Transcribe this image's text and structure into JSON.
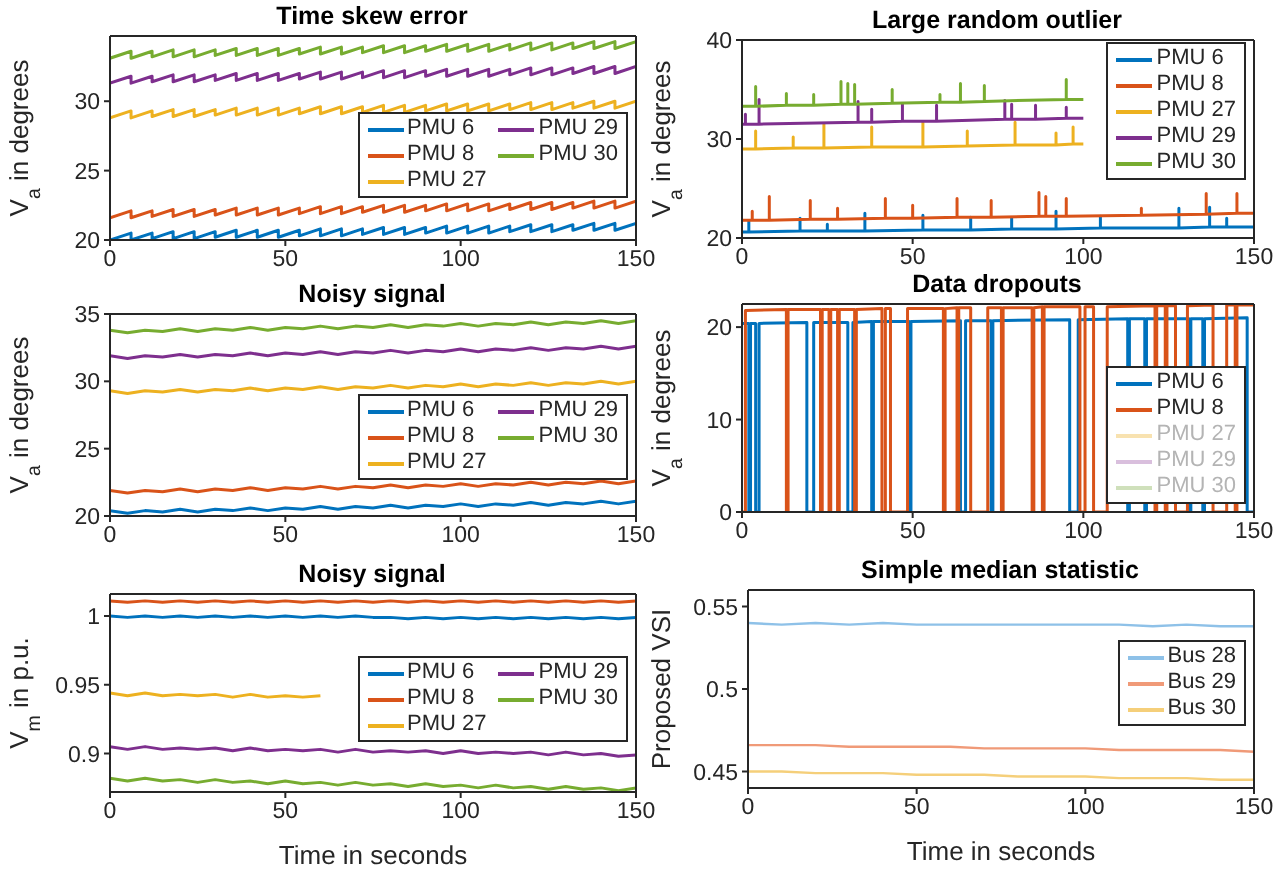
{
  "chart_data": [
    {
      "type": "line",
      "title": "Time skew error",
      "ylabel": "V$_{a}$ in degrees",
      "xlim": [
        0,
        150
      ],
      "xticks": [
        0,
        50,
        100,
        150
      ],
      "ylim": [
        20,
        34.7
      ],
      "yticks": [
        20,
        25,
        30
      ],
      "legend": "right",
      "x": [
        0,
        6,
        6,
        12,
        12,
        18,
        18,
        24,
        24,
        30,
        30,
        36,
        36,
        42,
        42,
        48,
        48,
        54,
        54,
        60,
        60,
        66,
        66,
        72,
        72,
        78,
        78,
        84,
        84,
        90,
        90,
        96,
        96,
        102,
        102,
        108,
        108,
        114,
        114,
        120,
        120,
        126,
        126,
        132,
        132,
        138,
        138,
        144,
        144,
        150
      ],
      "series": [
        {
          "name": "PMU 6",
          "color": "#0072bd",
          "values": [
            20,
            20.5,
            20,
            20.5,
            20.1,
            20.6,
            20.1,
            20.6,
            20.1,
            20.6,
            20.2,
            20.7,
            20.2,
            20.7,
            20.2,
            20.7,
            20.2,
            20.7,
            20.3,
            20.8,
            20.3,
            20.8,
            20.3,
            20.8,
            20.4,
            20.9,
            20.4,
            20.9,
            20.4,
            20.9,
            20.5,
            21,
            20.5,
            21,
            20.5,
            21,
            20.5,
            21,
            20.6,
            21.1,
            20.6,
            21.1,
            20.6,
            21.1,
            20.7,
            21.2,
            20.7,
            21.2,
            20.7,
            21.2
          ]
        },
        {
          "name": "PMU 8",
          "color": "#d95319",
          "values": [
            21.6,
            22.1,
            21.6,
            22.1,
            21.7,
            22.2,
            21.7,
            22.2,
            21.7,
            22.2,
            21.8,
            22.3,
            21.8,
            22.3,
            21.8,
            22.3,
            21.8,
            22.3,
            21.9,
            22.4,
            21.9,
            22.4,
            21.9,
            22.4,
            22,
            22.5,
            22,
            22.5,
            22,
            22.5,
            22.1,
            22.6,
            22.1,
            22.6,
            22.1,
            22.6,
            22.1,
            22.6,
            22.2,
            22.7,
            22.2,
            22.7,
            22.2,
            22.7,
            22.3,
            22.8,
            22.3,
            22.8,
            22.3,
            22.8
          ]
        },
        {
          "name": "PMU 27",
          "color": "#edb120",
          "values": [
            28.8,
            29.3,
            28.8,
            29.3,
            28.9,
            29.4,
            28.9,
            29.4,
            28.9,
            29.4,
            29,
            29.5,
            29,
            29.5,
            29,
            29.5,
            29,
            29.5,
            29.1,
            29.6,
            29.1,
            29.6,
            29.1,
            29.6,
            29.2,
            29.7,
            29.2,
            29.7,
            29.2,
            29.7,
            29.3,
            29.8,
            29.3,
            29.8,
            29.3,
            29.8,
            29.3,
            29.8,
            29.4,
            29.9,
            29.4,
            29.9,
            29.4,
            29.9,
            29.5,
            30,
            29.5,
            30,
            29.5,
            30
          ]
        },
        {
          "name": "PMU 29",
          "color": "#7e2f8e",
          "values": [
            31.3,
            31.8,
            31.3,
            31.8,
            31.4,
            31.9,
            31.4,
            31.9,
            31.4,
            31.9,
            31.5,
            32,
            31.5,
            32,
            31.5,
            32,
            31.5,
            32,
            31.6,
            32.1,
            31.6,
            32.1,
            31.6,
            32.1,
            31.7,
            32.2,
            31.7,
            32.2,
            31.7,
            32.2,
            31.8,
            32.3,
            31.8,
            32.3,
            31.8,
            32.3,
            31.8,
            32.3,
            31.9,
            32.4,
            31.9,
            32.4,
            31.9,
            32.4,
            32,
            32.5,
            32,
            32.5,
            32,
            32.5
          ]
        },
        {
          "name": "PMU 30",
          "color": "#77ac30",
          "values": [
            33.1,
            33.6,
            33.1,
            33.6,
            33.2,
            33.7,
            33.2,
            33.7,
            33.2,
            33.7,
            33.3,
            33.8,
            33.3,
            33.8,
            33.3,
            33.8,
            33.3,
            33.8,
            33.4,
            33.9,
            33.4,
            33.9,
            33.4,
            33.9,
            33.5,
            34,
            33.5,
            34,
            33.5,
            34,
            33.6,
            34.1,
            33.6,
            34.1,
            33.6,
            34.1,
            33.6,
            34.1,
            33.7,
            34.2,
            33.7,
            34.2,
            33.7,
            34.2,
            33.8,
            34.3,
            33.8,
            34.3,
            33.8,
            34.3
          ]
        }
      ]
    },
    {
      "type": "line",
      "title": "Large random outlier",
      "ylabel": "V$_{a}$ in degrees",
      "xlim": [
        0,
        150
      ],
      "xticks": [
        0,
        50,
        100,
        150
      ],
      "ylim": [
        20,
        40
      ],
      "yticks": [
        20,
        30,
        40
      ],
      "legend": "top right",
      "series": [
        {
          "name": "PMU 6",
          "color": "#0072bd",
          "x": [
            0,
            2,
            2,
            2,
            17,
            17,
            17,
            25,
            25,
            25,
            36,
            36,
            36,
            53,
            53,
            53,
            67,
            67,
            67,
            79,
            79,
            79,
            92,
            92,
            92,
            105,
            105,
            105,
            128,
            128,
            128,
            137,
            137,
            137,
            142,
            142,
            142,
            150
          ],
          "values": [
            20.6,
            20.6,
            21.7,
            20.6,
            20.7,
            22,
            20.7,
            20.7,
            21.4,
            20.7,
            20.7,
            22.5,
            20.7,
            20.8,
            22.3,
            20.8,
            20.8,
            22.1,
            20.8,
            20.9,
            22,
            20.9,
            20.9,
            22.7,
            20.9,
            21,
            22.2,
            21,
            21,
            23,
            21,
            21.1,
            23.1,
            21.1,
            21.1,
            22,
            21.1,
            21.1
          ]
        },
        {
          "name": "PMU 8",
          "color": "#d95319",
          "x": [
            0,
            3,
            3,
            3,
            8,
            8,
            8,
            20,
            20,
            20,
            28,
            28,
            28,
            42,
            42,
            42,
            50,
            50,
            50,
            63,
            63,
            63,
            73,
            73,
            73,
            87,
            87,
            87,
            89,
            89,
            89,
            95,
            95,
            95,
            117,
            117,
            117,
            136,
            136,
            136,
            145,
            145,
            145,
            150
          ],
          "values": [
            21.8,
            21.8,
            22.7,
            21.8,
            21.8,
            24.2,
            21.8,
            21.9,
            23.8,
            21.9,
            21.9,
            23,
            21.9,
            22,
            24,
            22,
            22,
            23.3,
            22,
            22.1,
            24,
            22.1,
            22.1,
            23.8,
            22.1,
            22.2,
            24.6,
            22.2,
            22.2,
            24.2,
            22.2,
            22.2,
            24,
            22.2,
            22.3,
            23,
            22.3,
            22.4,
            24.5,
            22.4,
            22.5,
            24.5,
            22.5,
            22.5
          ]
        },
        {
          "name": "PMU 27",
          "color": "#edb120",
          "x": [
            0,
            4,
            4,
            4,
            15,
            15,
            15,
            24,
            24,
            24,
            38,
            38,
            38,
            53,
            53,
            53,
            66,
            66,
            66,
            80,
            80,
            80,
            92,
            92,
            92,
            97,
            97,
            97,
            100
          ],
          "values": [
            29,
            29,
            30.8,
            29,
            29.1,
            30.2,
            29.1,
            29.1,
            31.5,
            29.1,
            29.2,
            31.2,
            29.2,
            29.2,
            31.7,
            29.2,
            29.3,
            30.8,
            29.3,
            29.4,
            31.7,
            29.4,
            29.4,
            30.6,
            29.4,
            29.5,
            31.2,
            29.5,
            29.5
          ]
        },
        {
          "name": "PMU 29",
          "color": "#7e2f8e",
          "x": [
            0,
            1,
            1,
            1,
            5,
            5,
            5,
            34,
            34,
            34,
            38,
            38,
            38,
            47,
            47,
            47,
            57,
            57,
            57,
            77,
            77,
            77,
            79,
            79,
            79,
            86,
            86,
            86,
            95,
            95,
            95,
            100
          ],
          "values": [
            31.5,
            31.5,
            32.5,
            31.5,
            31.5,
            34,
            31.5,
            31.7,
            33.8,
            31.7,
            31.7,
            33,
            31.7,
            31.8,
            33.5,
            31.8,
            31.8,
            33.4,
            31.8,
            32,
            33.9,
            32,
            32,
            33.5,
            32,
            32,
            33.4,
            32,
            32.1,
            33.2,
            32.1,
            32.1
          ]
        },
        {
          "name": "PMU 30",
          "color": "#77ac30",
          "x": [
            0,
            4,
            4,
            4,
            13,
            13,
            13,
            21,
            21,
            21,
            29,
            29,
            29,
            31,
            31,
            31,
            33,
            33,
            33,
            44,
            44,
            44,
            58,
            58,
            58,
            64,
            64,
            64,
            71,
            71,
            71,
            95,
            95,
            95,
            100
          ],
          "values": [
            33.3,
            33.3,
            35.3,
            33.3,
            33.4,
            34.6,
            33.4,
            33.4,
            34.5,
            33.4,
            33.5,
            35.8,
            33.5,
            33.5,
            35.6,
            33.5,
            33.5,
            35.5,
            33.5,
            33.6,
            35,
            33.6,
            33.7,
            34.5,
            33.7,
            33.7,
            35.6,
            33.7,
            33.8,
            35.4,
            33.8,
            34,
            36,
            34,
            34
          ]
        }
      ]
    },
    {
      "type": "line",
      "title": "Noisy signal",
      "ylabel": "V$_{a}$ in degrees",
      "xlim": [
        0,
        150
      ],
      "xticks": [
        0,
        50,
        100,
        150
      ],
      "ylim": [
        20,
        35
      ],
      "yticks": [
        20,
        25,
        30,
        35
      ],
      "legend": "right",
      "x": [
        0,
        5,
        10,
        15,
        20,
        25,
        30,
        35,
        40,
        45,
        50,
        55,
        60,
        65,
        70,
        75,
        80,
        85,
        90,
        95,
        100,
        105,
        110,
        115,
        120,
        125,
        130,
        135,
        140,
        145,
        150
      ],
      "series": [
        {
          "name": "PMU 6",
          "color": "#0072bd",
          "values": [
            20.4,
            20.2,
            20.4,
            20.3,
            20.5,
            20.3,
            20.5,
            20.4,
            20.6,
            20.4,
            20.6,
            20.5,
            20.7,
            20.5,
            20.7,
            20.6,
            20.8,
            20.6,
            20.8,
            20.7,
            20.9,
            20.7,
            20.9,
            20.8,
            21,
            20.8,
            21,
            20.9,
            21.1,
            20.9,
            21.1
          ]
        },
        {
          "name": "PMU 8",
          "color": "#d95319",
          "values": [
            21.9,
            21.7,
            21.9,
            21.8,
            22,
            21.8,
            22,
            21.9,
            22.1,
            21.9,
            22.1,
            22,
            22.2,
            22,
            22.2,
            22.1,
            22.3,
            22.1,
            22.3,
            22.2,
            22.4,
            22.2,
            22.4,
            22.3,
            22.5,
            22.3,
            22.5,
            22.4,
            22.6,
            22.4,
            22.6
          ]
        },
        {
          "name": "PMU 27",
          "color": "#edb120",
          "values": [
            29.3,
            29.1,
            29.3,
            29.2,
            29.4,
            29.2,
            29.4,
            29.3,
            29.5,
            29.3,
            29.5,
            29.4,
            29.6,
            29.4,
            29.6,
            29.5,
            29.7,
            29.5,
            29.7,
            29.6,
            29.8,
            29.6,
            29.8,
            29.7,
            29.9,
            29.7,
            29.9,
            29.8,
            30,
            29.8,
            30
          ]
        },
        {
          "name": "PMU 29",
          "color": "#7e2f8e",
          "values": [
            31.9,
            31.7,
            31.9,
            31.8,
            32,
            31.8,
            32,
            31.9,
            32.1,
            31.9,
            32.1,
            32,
            32.2,
            32,
            32.2,
            32.1,
            32.3,
            32.1,
            32.3,
            32.2,
            32.4,
            32.2,
            32.4,
            32.3,
            32.5,
            32.3,
            32.5,
            32.4,
            32.6,
            32.4,
            32.6
          ]
        },
        {
          "name": "PMU 30",
          "color": "#77ac30",
          "values": [
            33.8,
            33.6,
            33.8,
            33.7,
            33.9,
            33.7,
            33.9,
            33.8,
            34,
            33.8,
            34,
            33.9,
            34.1,
            33.9,
            34.1,
            34,
            34.2,
            34,
            34.2,
            34.1,
            34.3,
            34.1,
            34.3,
            34.2,
            34.4,
            34.2,
            34.4,
            34.3,
            34.5,
            34.3,
            34.5
          ]
        }
      ]
    },
    {
      "type": "line",
      "title": "Data dropouts",
      "ylabel": "V$_{a}$ in degrees",
      "xlim": [
        0,
        150
      ],
      "xticks": [
        0,
        50,
        100,
        150
      ],
      "ylim": [
        0,
        22.5
      ],
      "yticks": [
        0,
        10,
        20
      ],
      "legend": "bottom right",
      "series": [
        {
          "name": "PMU 6",
          "color": "#0072bd",
          "x": [
            0,
            2,
            2,
            2.5,
            2.5,
            4,
            4,
            5,
            5,
            19,
            19,
            21,
            21,
            31,
            31,
            32.5,
            32.5,
            38,
            38,
            38.5,
            38.5,
            49,
            49,
            49.5,
            49.5,
            64,
            64,
            65.5,
            65.5,
            73,
            73,
            73.5,
            73.5,
            96,
            96,
            98.5,
            98.5,
            113,
            113,
            113.5,
            113.5,
            118,
            118,
            118.5,
            118.5,
            131,
            131,
            131.5,
            131.5,
            135,
            135,
            135.5,
            135.5,
            148,
            148,
            150
          ],
          "values": [
            20.4,
            20.4,
            0,
            0,
            20.4,
            20.4,
            0,
            0,
            20.4,
            20.5,
            0,
            0,
            20.5,
            20.5,
            0,
            0,
            20.5,
            20.6,
            0,
            0,
            20.6,
            20.6,
            0,
            0,
            20.6,
            20.7,
            0,
            0,
            20.7,
            20.7,
            0,
            0,
            20.7,
            20.8,
            0,
            0,
            20.8,
            20.9,
            0,
            0,
            20.9,
            20.9,
            0,
            0,
            20.9,
            20.9,
            0,
            0,
            20.9,
            20.9,
            0,
            0,
            20.9,
            21,
            0,
            0
          ]
        },
        {
          "name": "PMU 8",
          "color": "#d95319",
          "x": [
            0,
            1,
            1,
            13,
            13,
            13.5,
            13.5,
            23,
            23,
            23.5,
            23.5,
            25.5,
            25.5,
            26,
            26,
            28,
            28,
            28.5,
            28.5,
            33,
            33,
            33.5,
            33.5,
            41,
            41,
            42,
            42,
            43.5,
            43.5,
            48.5,
            48.5,
            59,
            59,
            59.5,
            59.5,
            63,
            63,
            63.5,
            63.5,
            67,
            67,
            72,
            72,
            76,
            76,
            76.5,
            76.5,
            85,
            85,
            85.5,
            85.5,
            88,
            88,
            88.5,
            88.5,
            99,
            99,
            100.5,
            100.5,
            103,
            103,
            107,
            107,
            121,
            121,
            121.5,
            121.5,
            124,
            124,
            124.5,
            124.5,
            127,
            127,
            130.5,
            130.5,
            138,
            138,
            142,
            142,
            144.5,
            144.5,
            145,
            145,
            150
          ],
          "values": [
            0,
            0,
            21.8,
            21.9,
            0,
            0,
            21.9,
            21.9,
            0,
            0,
            21.9,
            21.9,
            0,
            0,
            21.9,
            21.9,
            0,
            0,
            21.9,
            21.9,
            0,
            0,
            21.9,
            22,
            0,
            0,
            22,
            22,
            0,
            0,
            22,
            22,
            0,
            0,
            22,
            22.1,
            0,
            0,
            22.1,
            22.1,
            0,
            0,
            22.1,
            22.1,
            0,
            0,
            22.1,
            22.1,
            0,
            0,
            22.1,
            22.2,
            0,
            0,
            22.2,
            22.2,
            0,
            0,
            22.2,
            22.2,
            0,
            0,
            22.2,
            22.3,
            0,
            0,
            22.3,
            22.3,
            0,
            0,
            22.3,
            22.3,
            0,
            0,
            22.3,
            22.4,
            0,
            0,
            22.4,
            22.4,
            0,
            0,
            22.4,
            22.4
          ]
        },
        {
          "name": "PMU 27",
          "color": "#f8e2b0"
        },
        {
          "name": "PMU 29",
          "color": "#d9bfdd"
        },
        {
          "name": "PMU 30",
          "color": "#cfe0bb"
        }
      ]
    },
    {
      "type": "line",
      "title": "Noisy signal",
      "xlabel": "Time in seconds",
      "ylabel": "V$_{m}$ in p.u.",
      "xlim": [
        0,
        150
      ],
      "xticks": [
        0,
        50,
        100,
        150
      ],
      "ylim": [
        0.872,
        1.016
      ],
      "yticks": [
        0.9,
        0.95,
        1
      ],
      "legend": "right",
      "x": [
        0,
        5,
        10,
        15,
        20,
        25,
        30,
        35,
        40,
        45,
        50,
        55,
        60,
        65,
        70,
        75,
        80,
        85,
        90,
        95,
        100,
        105,
        110,
        115,
        120,
        125,
        130,
        135,
        140,
        145,
        150
      ],
      "series": [
        {
          "name": "PMU 6",
          "color": "#0072bd",
          "values": [
            1,
            0.999,
            1,
            0.999,
            1,
            0.999,
            1,
            0.999,
            1,
            0.999,
            1,
            0.999,
            1,
            0.999,
            1,
            0.999,
            0.999,
            0.998,
            0.999,
            0.998,
            0.999,
            0.998,
            0.999,
            0.998,
            0.999,
            0.998,
            0.999,
            0.998,
            0.999,
            0.998,
            0.999
          ]
        },
        {
          "name": "PMU 8",
          "color": "#d95319",
          "values": [
            1.011,
            1.01,
            1.011,
            1.01,
            1.011,
            1.01,
            1.011,
            1.01,
            1.011,
            1.01,
            1.011,
            1.01,
            1.011,
            1.01,
            1.011,
            1.01,
            1.011,
            1.01,
            1.011,
            1.01,
            1.011,
            1.01,
            1.011,
            1.01,
            1.011,
            1.01,
            1.011,
            1.01,
            1.011,
            1.01,
            1.011
          ]
        },
        {
          "name": "PMU 27",
          "color": "#edb120",
          "values": [
            0.944,
            0.942,
            0.944,
            0.942,
            0.943,
            0.942,
            0.943,
            0.941,
            0.943,
            0.941,
            0.942,
            0.941,
            0.942,
            null,
            null,
            null,
            null,
            null,
            null,
            null,
            null,
            null,
            null,
            null,
            null,
            null,
            null,
            null,
            null,
            null,
            null
          ]
        },
        {
          "name": "PMU 29",
          "color": "#7e2f8e",
          "values": [
            0.905,
            0.903,
            0.905,
            0.903,
            0.904,
            0.903,
            0.904,
            0.902,
            0.904,
            0.902,
            0.903,
            0.902,
            0.903,
            0.901,
            0.903,
            0.901,
            0.902,
            0.901,
            0.902,
            0.9,
            0.902,
            0.9,
            0.901,
            0.9,
            0.901,
            0.899,
            0.901,
            0.899,
            0.9,
            0.898,
            0.899
          ]
        },
        {
          "name": "PMU 30",
          "color": "#77ac30",
          "values": [
            0.882,
            0.88,
            0.882,
            0.88,
            0.881,
            0.879,
            0.881,
            0.879,
            0.88,
            0.878,
            0.88,
            0.878,
            0.879,
            0.877,
            0.879,
            0.877,
            0.878,
            0.876,
            0.878,
            0.876,
            0.877,
            0.875,
            0.877,
            0.875,
            0.876,
            0.874,
            0.876,
            0.874,
            0.875,
            0.873,
            0.875
          ]
        }
      ]
    },
    {
      "type": "line",
      "title": "Simple median statistic",
      "xlabel": "Time in seconds",
      "ylabel": "Proposed VSI",
      "xlim": [
        0,
        150
      ],
      "xticks": [
        0,
        50,
        100,
        150
      ],
      "ylim": [
        0.44,
        0.56
      ],
      "yticks": [
        0.45,
        0.5,
        0.55
      ],
      "legend": "right",
      "x": [
        0,
        10,
        20,
        30,
        40,
        50,
        60,
        70,
        80,
        90,
        100,
        110,
        120,
        130,
        140,
        150
      ],
      "series": [
        {
          "name": "Bus 28",
          "color": "#8ec1e8",
          "values": [
            0.54,
            0.539,
            0.54,
            0.539,
            0.54,
            0.539,
            0.539,
            0.539,
            0.539,
            0.539,
            0.539,
            0.539,
            0.538,
            0.539,
            0.538,
            0.538
          ]
        },
        {
          "name": "Bus 29",
          "color": "#f09a78",
          "values": [
            0.466,
            0.466,
            0.466,
            0.465,
            0.465,
            0.465,
            0.465,
            0.464,
            0.464,
            0.464,
            0.464,
            0.463,
            0.463,
            0.463,
            0.463,
            0.462
          ]
        },
        {
          "name": "Bus 30",
          "color": "#f5cf7a",
          "values": [
            0.45,
            0.45,
            0.449,
            0.449,
            0.449,
            0.448,
            0.448,
            0.448,
            0.447,
            0.447,
            0.447,
            0.446,
            0.446,
            0.446,
            0.445,
            0.445
          ]
        }
      ]
    }
  ]
}
